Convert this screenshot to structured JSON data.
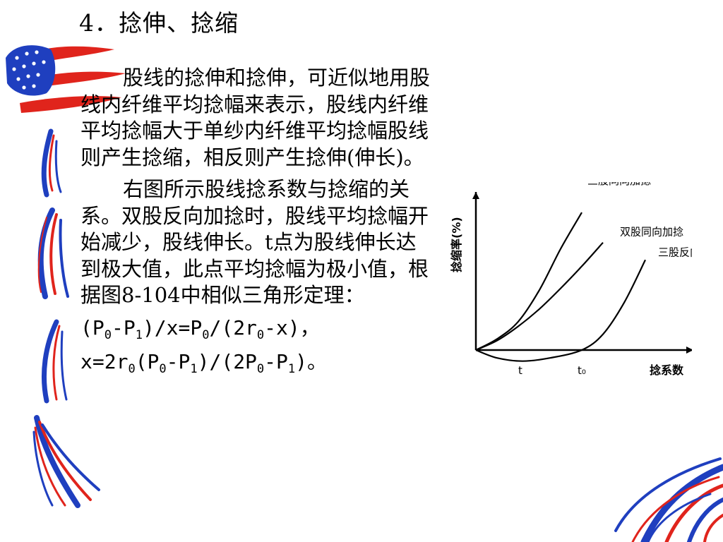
{
  "slide": {
    "title": "4．捻伸、捻缩",
    "paragraph1": "股线的捻伸和捻伸，可近似地用股线内纤维平均捻幅来表示，股线内纤维平均捻幅大于单纱内纤维平均捻幅股线则产生捻缩，相反则产生捻伸(伸长)。",
    "paragraph2": "右图所示股线捻系数与捻缩的关系。双股反向加捻时，股线平均捻幅开始减少，股线伸长。t点为股线伸长达到极大值，此点平均捻幅为极小值，根据图8-104中相似三角形定理：",
    "formula1": {
      "t1": "(P",
      "s1": "0",
      "t2": "-P",
      "s2": "1",
      "t3": ")/x=P",
      "s3": "0",
      "t4": "/(2r",
      "s4": "0",
      "t5": "-x)，"
    },
    "formula2": {
      "t1": "x=2r",
      "s1": "0",
      "t2": "(P",
      "s2": "0",
      "t3": "-P",
      "s3": "1",
      "t4": ")/(2P",
      "s4": "0",
      "t5": "-P",
      "s5": "1",
      "t6": ")。"
    }
  },
  "chart_data": {
    "type": "line",
    "ylabel": "捻缩率(%)",
    "xlabel": "捻系数",
    "x_ticks": [
      {
        "label": "t",
        "x": 0.22
      },
      {
        "label": "t₀",
        "x": 0.5
      }
    ],
    "xlim": [
      0,
      1
    ],
    "ylim": [
      -0.1,
      1
    ],
    "series": [
      {
        "name": "三股同向加捻",
        "x": [
          0,
          0.1,
          0.2,
          0.3,
          0.4,
          0.5
        ],
        "y": [
          0,
          0.07,
          0.18,
          0.38,
          0.64,
          0.87
        ]
      },
      {
        "name": "双股同向加捻",
        "x": [
          0,
          0.1,
          0.2,
          0.3,
          0.4,
          0.5,
          0.6
        ],
        "y": [
          0,
          0.06,
          0.15,
          0.26,
          0.39,
          0.53,
          0.68
        ]
      },
      {
        "name": "三股反向加捻",
        "x": [
          0,
          0.1,
          0.22,
          0.35,
          0.5,
          0.6,
          0.7,
          0.8
        ],
        "y": [
          0,
          -0.05,
          -0.07,
          -0.05,
          0,
          0.1,
          0.3,
          0.57
        ]
      }
    ],
    "grid": false,
    "legend": "inline labels at curve ends"
  }
}
